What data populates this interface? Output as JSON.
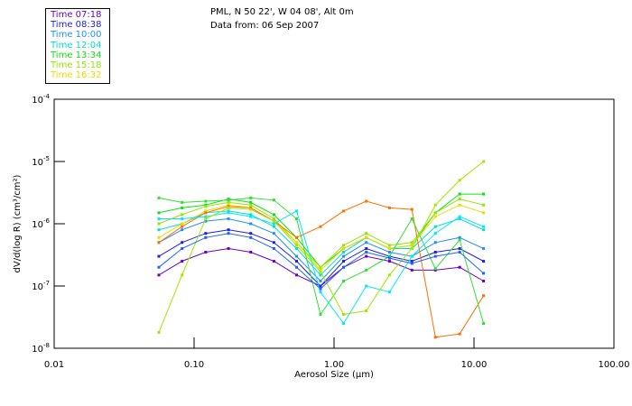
{
  "chart_data": {
    "type": "line",
    "title": "PML, N 50 22', W 04 08', Alt 0m",
    "subtitle": "Data from: 06 Sep 2007",
    "xlabel": "Aerosol Size (µm)",
    "ylabel": "dV/d(log R)  (cm³/cm²)",
    "xscale": "log",
    "yscale": "log",
    "xlim": [
      0.01,
      100
    ],
    "ylim": [
      1e-08,
      0.0001
    ],
    "xticks": [
      {
        "v": 0.01,
        "label": "0.01"
      },
      {
        "v": 0.1,
        "label": "0.10"
      },
      {
        "v": 1,
        "label": "1.00"
      },
      {
        "v": 10,
        "label": "10.00"
      },
      {
        "v": 100,
        "label": "100.00"
      }
    ],
    "yticks": [
      {
        "v": 0.0001,
        "exp": "-4"
      },
      {
        "v": 1e-05,
        "exp": "-5"
      },
      {
        "v": 1e-06,
        "exp": "-6"
      },
      {
        "v": 1e-07,
        "exp": "-7"
      },
      {
        "v": 1e-08,
        "exp": "-8"
      }
    ],
    "legend_position": "top-left-outside",
    "x": [
      0.056,
      0.082,
      0.121,
      0.176,
      0.254,
      0.372,
      0.54,
      0.8,
      1.17,
      1.7,
      2.49,
      3.6,
      5.3,
      7.9,
      11.7
    ],
    "series": [
      {
        "name": "Time 07:18",
        "color": "#6a00c8",
        "values": [
          1.5e-07,
          2.5e-07,
          3.5e-07,
          4e-07,
          3.5e-07,
          2.5e-07,
          1.5e-07,
          1e-07,
          2e-07,
          3e-07,
          2.5e-07,
          1.8e-07,
          1.8e-07,
          2e-07,
          1.2e-07
        ]
      },
      {
        "name": "Time 08:38",
        "color": "#1e1ee6",
        "values": [
          3e-07,
          5e-07,
          7e-07,
          8e-07,
          7e-07,
          5e-07,
          2.5e-07,
          1e-07,
          2.5e-07,
          4e-07,
          3e-07,
          2.5e-07,
          3.5e-07,
          4e-07,
          2.5e-07
        ]
      },
      {
        "name": "Time 10:00",
        "color": "#1e90ff",
        "values": [
          5e-07,
          8e-07,
          1.1e-06,
          1.2e-06,
          1e-06,
          7e-07,
          3e-07,
          1.2e-07,
          3e-07,
          5e-07,
          3.5e-07,
          3e-07,
          5e-07,
          6e-07,
          4e-07
        ]
      },
      {
        "name": "Time 12:04",
        "color": "#00e0d0",
        "values": [
          8e-07,
          1e-06,
          1.5e-06,
          1.6e-06,
          1.4e-06,
          9e-07,
          4e-07,
          1.5e-07,
          3.5e-07,
          6e-07,
          4e-07,
          4e-07,
          9e-07,
          1.2e-06,
          8e-07
        ]
      },
      {
        "name": "Time 13:34",
        "color": "#10e010",
        "values": [
          1.5e-06,
          1.8e-06,
          2e-06,
          2.5e-06,
          2.2e-06,
          1.4e-06,
          6e-07,
          2e-07,
          4e-07,
          6e-07,
          4e-07,
          4.5e-07,
          1.5e-06,
          3e-06,
          3e-06
        ]
      },
      {
        "name": "Time 15:18",
        "color": "#90e800",
        "values": [
          1e-06,
          1.4e-06,
          1.9e-06,
          2.2e-06,
          2e-06,
          1.2e-06,
          5e-07,
          2e-07,
          4.5e-07,
          7e-07,
          4.5e-07,
          5e-07,
          1.5e-06,
          2.5e-06,
          2e-06
        ]
      },
      {
        "name": "Time 16:32",
        "color": "#f0d800",
        "values": [
          6e-07,
          1e-06,
          1.6e-06,
          2e-06,
          1.8e-06,
          1.1e-06,
          5e-07,
          1.8e-07,
          4e-07,
          6e-07,
          4e-07,
          4.5e-07,
          1.3e-06,
          2e-06,
          1.5e-06
        ]
      },
      {
        "name": "",
        "color": "#ff7000",
        "values": [
          5e-07,
          9e-07,
          1.5e-06,
          1.9e-06,
          1.8e-06,
          1.1e-06,
          6e-07,
          9e-07,
          1.6e-06,
          2.3e-06,
          1.8e-06,
          1.7e-06,
          1.5e-08,
          1.7e-08,
          7e-08
        ]
      },
      {
        "name": "",
        "color": "#30e030",
        "values": [
          2.6e-06,
          2.2e-06,
          2.3e-06,
          2.4e-06,
          2.6e-06,
          2.4e-06,
          1.2e-06,
          3.5e-08,
          1.2e-07,
          1.8e-07,
          3e-07,
          1.2e-06,
          1.9e-07,
          5.5e-07,
          2.5e-08
        ]
      },
      {
        "name": "",
        "color": "#00e8ff",
        "values": [
          1.2e-06,
          1.2e-06,
          1.3e-06,
          1.5e-06,
          1.3e-06,
          1e-06,
          1.6e-06,
          8e-08,
          2.5e-08,
          1e-07,
          8e-08,
          3e-07,
          7e-07,
          1.3e-06,
          9e-07
        ]
      },
      {
        "name": "",
        "color": "#a0e800",
        "values": [
          1.8e-08,
          1.5e-07,
          1.2e-06,
          1.8e-06,
          1.7e-06,
          1.1e-06,
          4.5e-07,
          1.7e-07,
          3.5e-08,
          4e-08,
          1.5e-07,
          4e-07,
          2e-06,
          5e-06,
          1e-05
        ]
      },
      {
        "name": "",
        "color": "#2060ff",
        "values": [
          2e-07,
          4e-07,
          6e-07,
          7e-07,
          6e-07,
          4e-07,
          2e-07,
          9e-08,
          2e-07,
          3.5e-07,
          2.8e-07,
          2.3e-07,
          3e-07,
          3.5e-07,
          1.6e-07
        ]
      }
    ]
  }
}
